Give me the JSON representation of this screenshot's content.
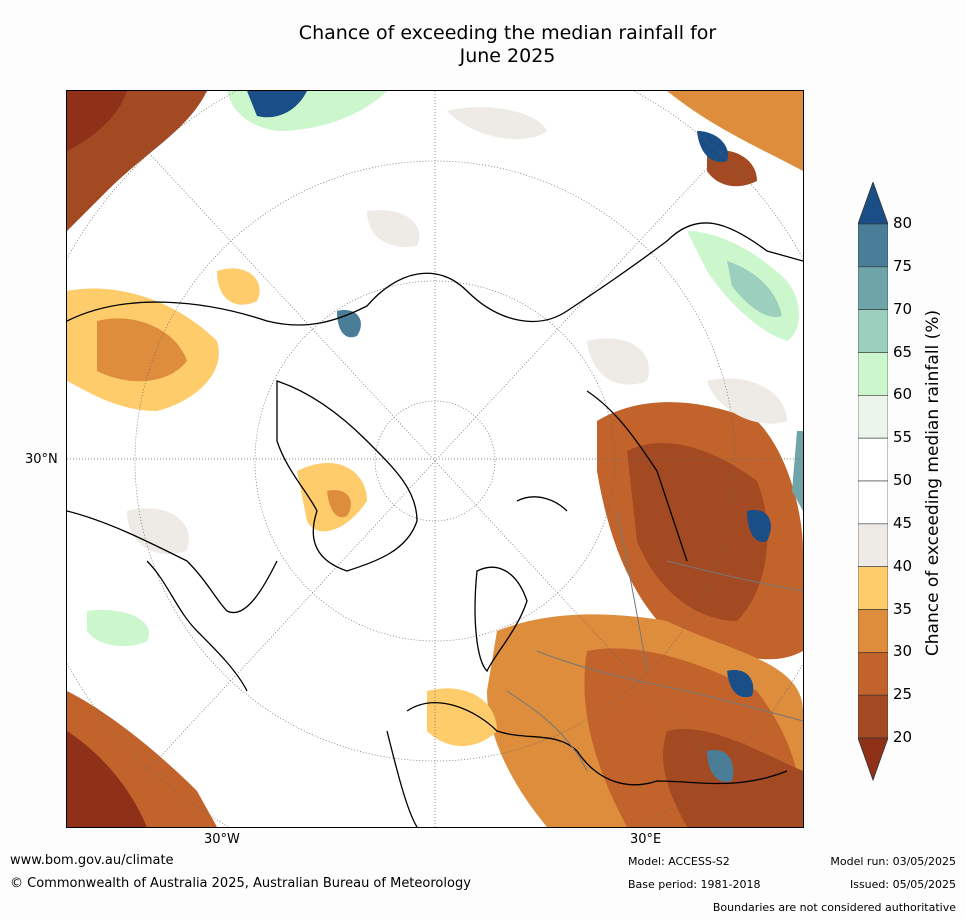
{
  "title_line1": "Chance of exceeding the median rainfall for",
  "title_line2": "June 2025",
  "axis_labels": {
    "lat_30n": "30°N",
    "lon_30w": "30°W",
    "lon_30e": "30°E"
  },
  "colorbar": {
    "title": "Chance of exceeding median rainfall (%)",
    "ticks": [
      "80",
      "75",
      "70",
      "65",
      "60",
      "55",
      "50",
      "45",
      "40",
      "35",
      "30",
      "25",
      "20"
    ],
    "colors": [
      "#1a4e86",
      "#4a7d97",
      "#6fa5a8",
      "#9dcfbf",
      "#ccf7cc",
      "#ebf5eb",
      "#ffffff",
      "#ffffff",
      "#eeebe6",
      "#fecc6a",
      "#dd8d3c",
      "#c2632b",
      "#a44a22",
      "#8e3118"
    ]
  },
  "footer": {
    "website": "www.bom.gov.au/climate",
    "copyright": "© Commonwealth of Australia 2025, Australian Bureau of Meteorology",
    "model": "Model: ACCESS-S2",
    "base_period": "Base period: 1981-2018",
    "model_run": "Model run: 03/05/2025",
    "issued": "Issued: 05/05/2025",
    "disclaimer": "Boundaries are not considered authoritative"
  }
}
